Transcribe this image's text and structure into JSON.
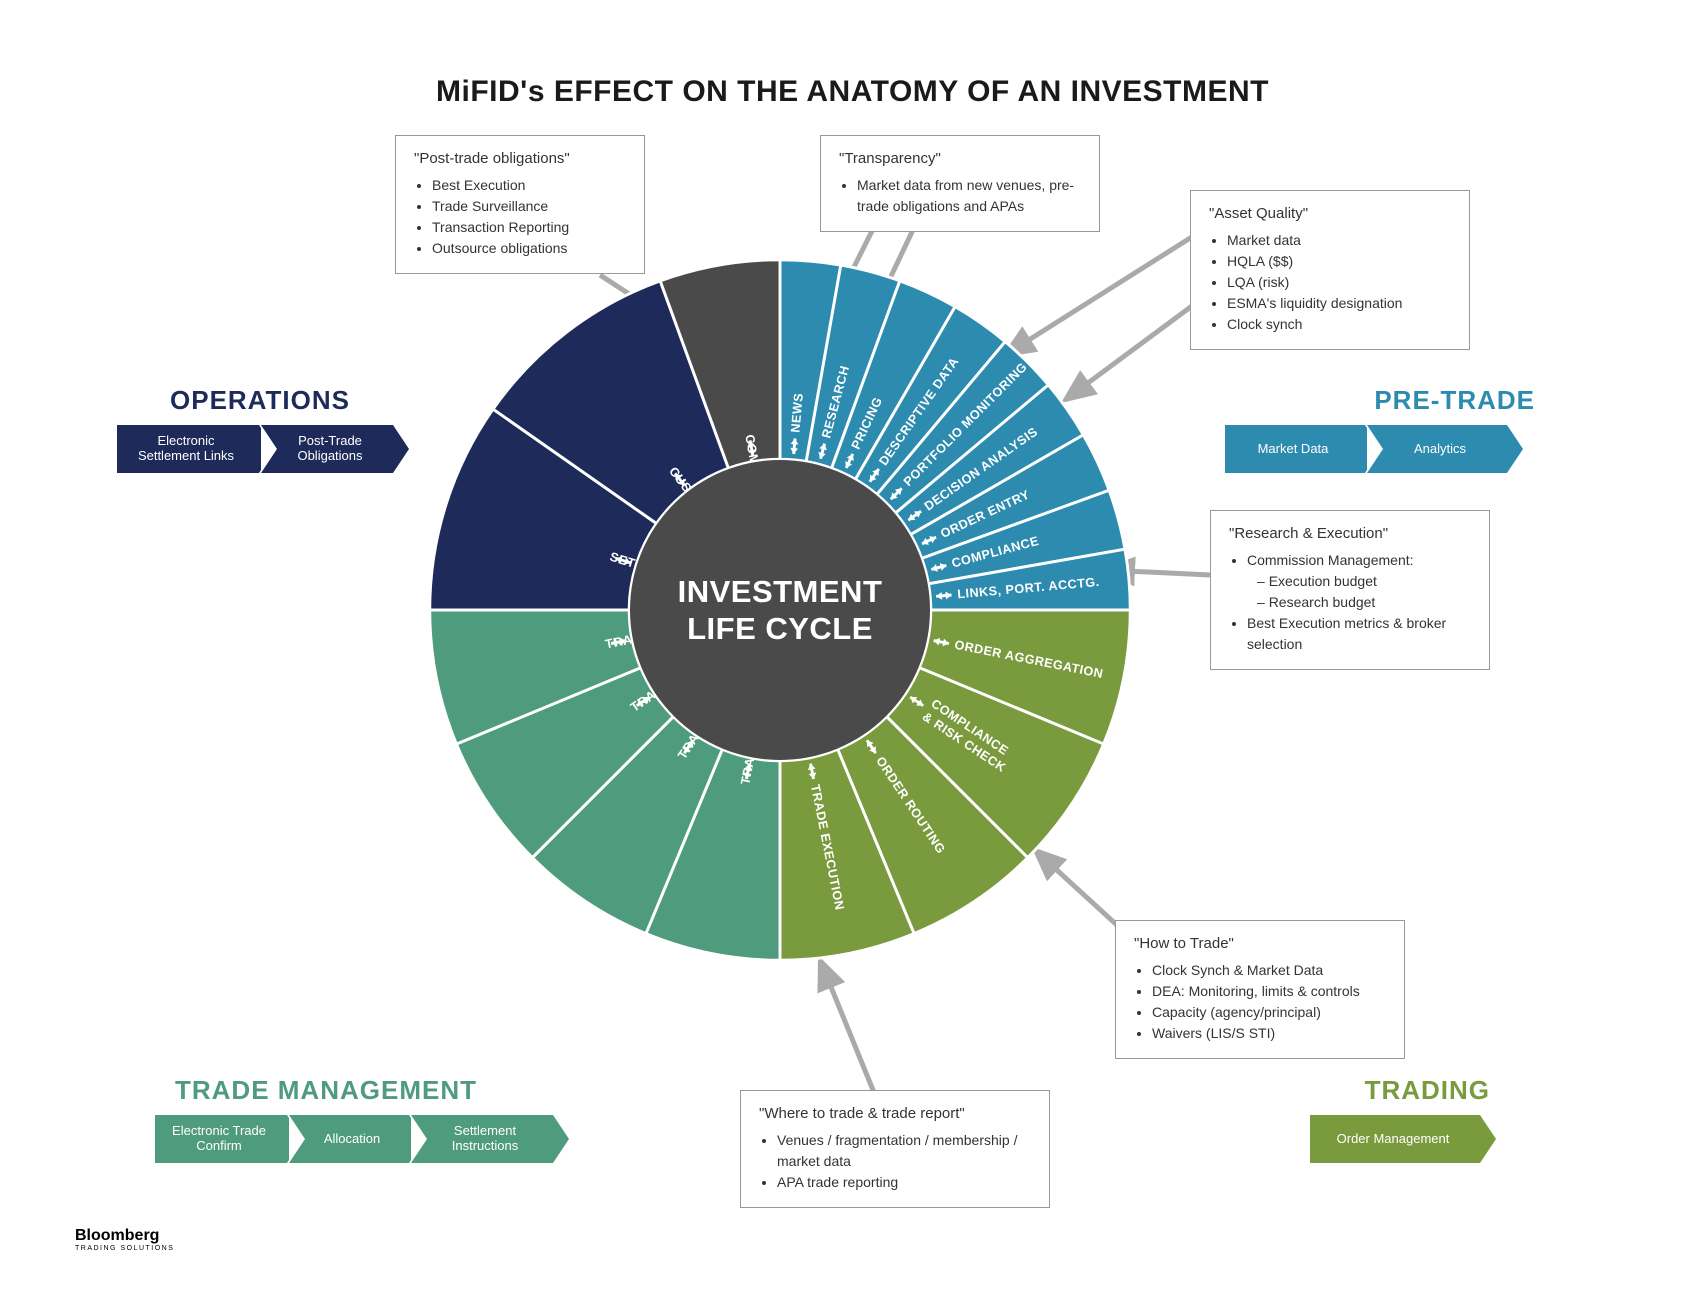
{
  "title": "MiFID's EFFECT ON THE ANATOMY OF AN INVESTMENT",
  "center": {
    "line1": "INVESTMENT",
    "line2": "LIFE CYCLE"
  },
  "colors": {
    "operations": "#1e2a5a",
    "compliance_q": "#4a4a4a",
    "pretrade": "#2d8bb0",
    "trading": "#7a9a3e",
    "trademgmt": "#4e9b7e",
    "center": "#4a4a4a",
    "box_border": "#999",
    "text": "#333",
    "arrow_callout": "#aaaaaa"
  },
  "wheel": {
    "outer_radius": 360,
    "inner_radius": 155,
    "quadrants": [
      {
        "name": "pretrade",
        "color": "#2d8bb0",
        "start_deg": -90,
        "end_deg": 0,
        "segments": [
          {
            "label": "NEWS"
          },
          {
            "label": "RESEARCH"
          },
          {
            "label": "PRICING"
          },
          {
            "label": "DESCRIPTIVE DATA"
          },
          {
            "label": "PORTFOLIO MONITORING"
          },
          {
            "label": "DECISION ANALYSIS"
          },
          {
            "label": "ORDER ENTRY"
          },
          {
            "label": "COMPLIANCE"
          },
          {
            "label": "LINKS, PORT. ACCTG."
          }
        ]
      },
      {
        "name": "trading",
        "color": "#7a9a3e",
        "start_deg": 0,
        "end_deg": 90,
        "segments": [
          {
            "label": "ORDER AGGREGATION"
          },
          {
            "label": "COMPLIANCE & RISK CHECK",
            "twoLine": true
          },
          {
            "label": "ORDER ROUTING"
          },
          {
            "label": "TRADE EXECUTION"
          }
        ]
      },
      {
        "name": "trademgmt",
        "color": "#4e9b7e",
        "start_deg": 90,
        "end_deg": 180,
        "segments": [
          {
            "label": "TRADE CONFIRMATION"
          },
          {
            "label": "TRADE ALLOCATION"
          },
          {
            "label": "TRADE NETTING"
          },
          {
            "label": "TRADE EDIT"
          }
        ]
      },
      {
        "name": "operations",
        "color": "#1e2a5a",
        "start_deg": 180,
        "end_deg": 250,
        "segments": [
          {
            "label": "SETTLE INSTRUCTIONS"
          },
          {
            "label": "CUSTODIAN LINK"
          }
        ]
      },
      {
        "name": "compliance_q",
        "color": "#4a4a4a",
        "start_deg": 250,
        "end_deg": 270,
        "segments": [
          {
            "label": "COMPLIANCE"
          }
        ]
      }
    ]
  },
  "sections": {
    "operations": {
      "title": "OPERATIONS",
      "color": "#1e2a5a",
      "arrows": [
        "Electronic Settlement Links",
        "Post-Trade Obligations"
      ]
    },
    "pretrade": {
      "title": "PRE-TRADE",
      "color": "#2d8bb0",
      "arrows": [
        "Market Data",
        "Analytics"
      ]
    },
    "trading": {
      "title": "TRADING",
      "color": "#7a9a3e",
      "arrows": [
        "Order Management"
      ]
    },
    "trademgmt": {
      "title": "TRADE MANAGEMENT",
      "color": "#4e9b7e",
      "arrows": [
        "Electronic Trade Confirm",
        "Allocation",
        "Settlement Instructions"
      ]
    }
  },
  "callouts": {
    "posttrade": {
      "title": "\"Post-trade obligations\"",
      "items": [
        "Best Execution",
        "Trade Surveillance",
        "Transaction Reporting",
        "Outsource obligations"
      ]
    },
    "transparency": {
      "title": "\"Transparency\"",
      "items": [
        "Market data from new venues, pre-trade obligations and APAs"
      ]
    },
    "assetquality": {
      "title": "\"Asset Quality\"",
      "items": [
        "Market data",
        "HQLA ($$)",
        "LQA (risk)",
        "ESMA's liquidity designation",
        "Clock synch"
      ]
    },
    "research": {
      "title": "\"Research & Execution\"",
      "items": [
        "Commission Management:",
        "Best Execution metrics & broker selection"
      ],
      "subitems": [
        "Execution budget",
        "Research budget"
      ]
    },
    "howtotrade": {
      "title": "\"How to Trade\"",
      "items": [
        "Clock Synch & Market Data",
        "DEA: Monitoring, limits & controls",
        "Capacity (agency/principal)",
        "Waivers (LIS/S STI)"
      ]
    },
    "wheretotrade": {
      "title": "\"Where to trade & trade report\"",
      "items": [
        "Venues / fragmentation / membership / market data",
        "APA trade reporting"
      ]
    }
  },
  "logo": {
    "main": "Bloomberg",
    "sub": "TRADING SOLUTIONS"
  }
}
